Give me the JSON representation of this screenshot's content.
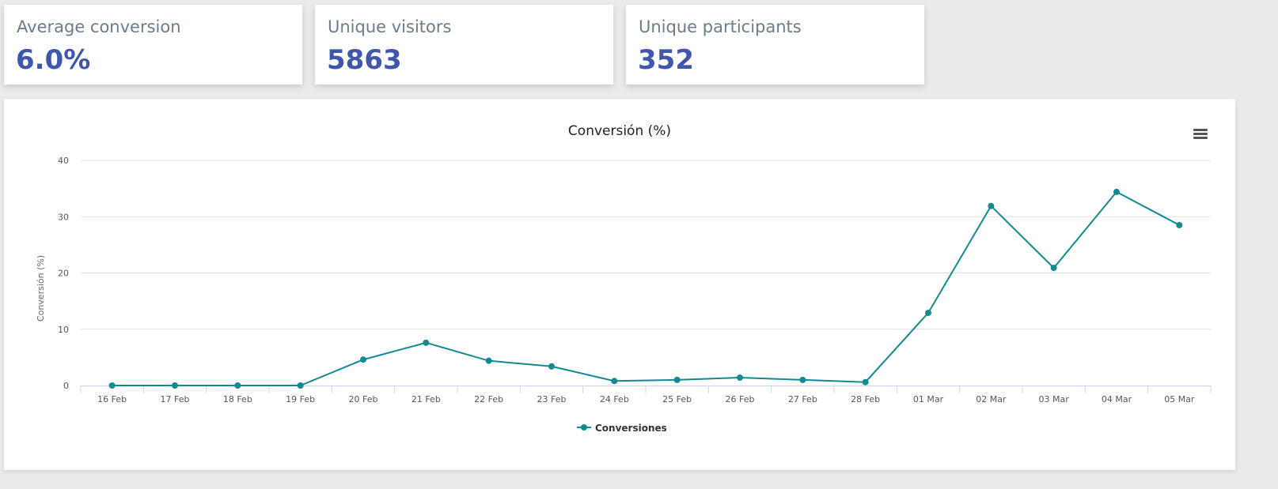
{
  "cards": [
    {
      "label": "Average conversion",
      "value": "6.0%"
    },
    {
      "label": "Unique visitors",
      "value": "5863"
    },
    {
      "label": "Unique participants",
      "value": "352"
    }
  ],
  "chart_data": {
    "type": "line",
    "title": "Conversión (%)",
    "ylabel": "Conversión (%)",
    "xlabel": "",
    "ylim": [
      0,
      40
    ],
    "yticks": [
      0,
      10,
      20,
      30,
      40
    ],
    "grid": true,
    "legend": "bottom-center",
    "color": "#138a91",
    "categories": [
      "16 Feb",
      "17 Feb",
      "18 Feb",
      "19 Feb",
      "20 Feb",
      "21 Feb",
      "22 Feb",
      "23 Feb",
      "24 Feb",
      "25 Feb",
      "26 Feb",
      "27 Feb",
      "28 Feb",
      "01 Mar",
      "02 Mar",
      "03 Mar",
      "04 Mar",
      "05 Mar"
    ],
    "series": [
      {
        "name": "Conversiones",
        "values": [
          0,
          0,
          0,
          0,
          4.6,
          7.6,
          4.4,
          3.4,
          0.8,
          1.0,
          1.4,
          1.0,
          0.6,
          12.9,
          31.9,
          20.9,
          34.4,
          28.5
        ]
      }
    ]
  },
  "menu_icon": "hamburger-menu-icon"
}
